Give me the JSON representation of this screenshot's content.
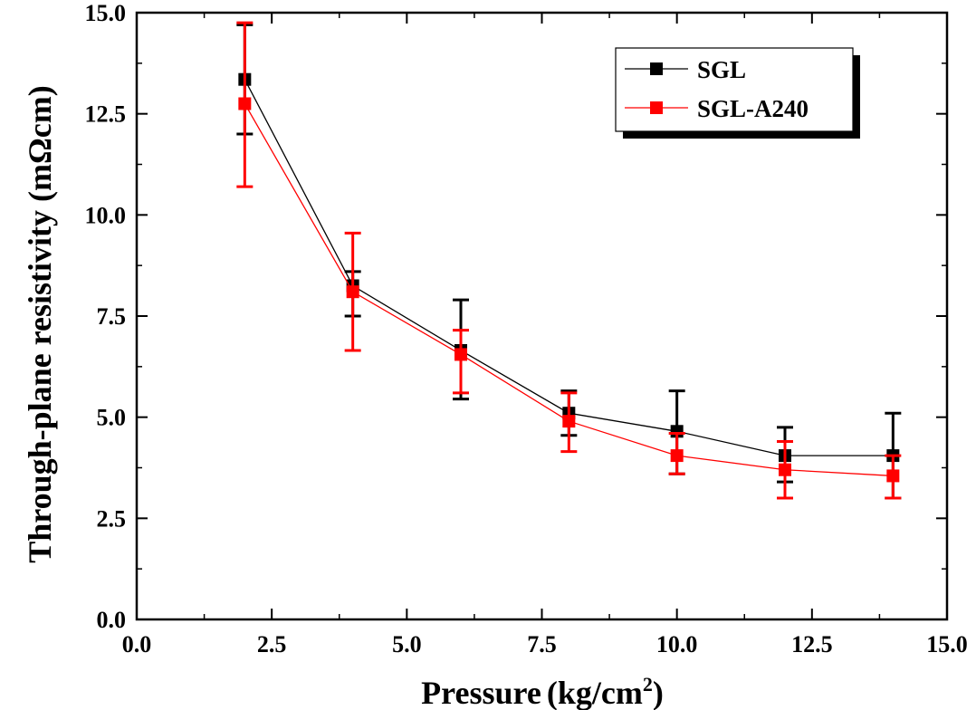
{
  "chart_data": {
    "type": "line",
    "title": "",
    "xlabel_main": "Pressure",
    "xlabel_unit": "(kg/cm",
    "xlabel_sup": "2",
    "xlabel_close": ")",
    "ylabel": "Through-plane resistivity (mΩcm)",
    "xlim": [
      0.0,
      15.0
    ],
    "ylim": [
      0.0,
      15.0
    ],
    "xticks": [
      "0.0",
      "2.5",
      "5.0",
      "7.5",
      "10.0",
      "12.5",
      "15.0"
    ],
    "yticks": [
      "0.0",
      "2.5",
      "5.0",
      "7.5",
      "10.0",
      "12.5",
      "15.0"
    ],
    "x": [
      2,
      4,
      6,
      8,
      10,
      12,
      14
    ],
    "grid": false,
    "legend_position": "top-right",
    "series": [
      {
        "name": "SGL",
        "color": "#000000",
        "values": [
          13.35,
          8.25,
          6.65,
          5.1,
          4.65,
          4.05,
          4.05
        ],
        "err_low": [
          12.0,
          7.5,
          5.45,
          4.55,
          3.6,
          3.4,
          3.0
        ],
        "err_high": [
          14.7,
          8.6,
          7.9,
          5.65,
          5.65,
          4.75,
          5.1
        ]
      },
      {
        "name": "SGL-A240",
        "color": "#ff0000",
        "values": [
          12.75,
          8.1,
          6.55,
          4.9,
          4.05,
          3.7,
          3.55
        ],
        "err_low": [
          10.7,
          6.65,
          5.6,
          4.15,
          3.6,
          3.0,
          3.0
        ],
        "err_high": [
          14.75,
          9.55,
          7.15,
          5.6,
          4.6,
          4.4,
          4.05
        ]
      }
    ]
  }
}
